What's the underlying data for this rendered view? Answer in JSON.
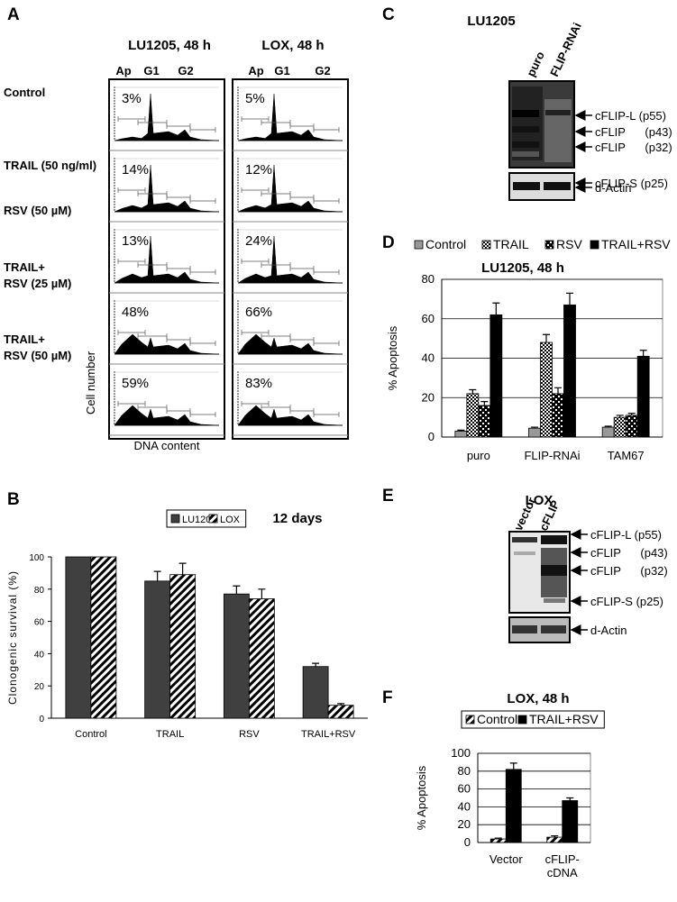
{
  "panel_a": {
    "panel": "A",
    "columns": [
      {
        "title": "LU1205,  48 h",
        "phases": [
          "Ap",
          "G1",
          "G2"
        ],
        "percents": [
          "3%",
          "14%",
          "13%",
          "48%",
          "59%"
        ]
      },
      {
        "title": "LOX, 48 h",
        "phases": [
          "Ap",
          "G1",
          "G2"
        ],
        "percents": [
          "5%",
          "12%",
          "24%",
          "66%",
          "83%"
        ]
      }
    ],
    "rows": [
      [
        "Control"
      ],
      [
        "TRAIL (50 ng/ml)"
      ],
      [
        "RSV (50 µM)"
      ],
      [
        "TRAIL+",
        "RSV (25 µM)"
      ],
      [
        "TRAIL+",
        "RSV (50 µM)"
      ]
    ],
    "y_label": "Cell number",
    "x_label": "DNA content"
  },
  "panel_c": {
    "panel": "C",
    "title": "LU1205",
    "lanes": [
      "puro",
      "FLIP-RNAi"
    ],
    "bands": [
      "cFLIP-L (p55)",
      "cFLIP      (p43)",
      "cFLIP      (p32)",
      "cFLIP-S (p25)"
    ],
    "loading": "d-Actin"
  },
  "panel_e": {
    "panel": "E",
    "title": "LOX",
    "lanes": [
      "vector",
      "cFLIP"
    ],
    "bands": [
      "cFLIP-L (p55)",
      "cFLIP      (p43)",
      "cFLIP      (p32)",
      "cFLIP-S (p25)"
    ],
    "loading": "d-Actin"
  },
  "chart_data": [
    {
      "panel": "B",
      "type": "bar",
      "title": "12 days",
      "y_label": "Clonogenic survival (%)",
      "categories": [
        "Control",
        "TRAIL",
        "RSV",
        "TRAIL+RSV"
      ],
      "series": [
        {
          "name": "LU1205",
          "color": "#404040",
          "pattern": "solid",
          "values": [
            100,
            85,
            77,
            32
          ],
          "errors": [
            0,
            6,
            5,
            2
          ]
        },
        {
          "name": "LOX",
          "color": "#000000",
          "pattern": "hatch",
          "values": [
            100,
            89,
            74,
            8
          ],
          "errors": [
            0,
            7,
            6,
            1
          ]
        }
      ],
      "ylim": [
        0,
        100
      ],
      "yticks": [
        0,
        20,
        40,
        60,
        80,
        100
      ],
      "grid": false,
      "legend": "top"
    },
    {
      "panel": "D",
      "type": "bar",
      "title": "LU1205, 48 h",
      "y_label": "% Apoptosis",
      "categories": [
        "puro",
        "FLIP-RNAi",
        "TAM67"
      ],
      "series": [
        {
          "name": "Control",
          "color": "#999999",
          "pattern": "solid",
          "values": [
            3,
            4.5,
            5
          ],
          "errors": [
            0.5,
            0.5,
            0.5
          ]
        },
        {
          "name": "TRAIL",
          "color": "#000000",
          "pattern": "check",
          "values": [
            22,
            48,
            10
          ],
          "errors": [
            2,
            4,
            1
          ]
        },
        {
          "name": "RSV",
          "color": "#000000",
          "pattern": "lattice",
          "values": [
            16,
            22,
            11
          ],
          "errors": [
            2,
            3,
            1
          ]
        },
        {
          "name": "TRAIL+RSV",
          "color": "#000000",
          "pattern": "solid",
          "values": [
            62,
            67,
            41
          ],
          "errors": [
            6,
            6,
            3
          ]
        }
      ],
      "ylim": [
        0,
        80
      ],
      "yticks": [
        0,
        20,
        40,
        60,
        80
      ],
      "grid": true,
      "legend": "top"
    },
    {
      "panel": "F",
      "type": "bar",
      "title": "LOX, 48 h",
      "y_label": "% Apoptosis",
      "categories": [
        "Vector",
        "cFLIP-cDNA"
      ],
      "series": [
        {
          "name": "Control",
          "color": "#000000",
          "pattern": "hatch",
          "values": [
            4,
            6
          ],
          "errors": [
            1,
            1.5
          ]
        },
        {
          "name": "TRAIL+RSV",
          "color": "#000000",
          "pattern": "solid",
          "values": [
            82,
            47
          ],
          "errors": [
            7,
            3
          ]
        }
      ],
      "ylim": [
        0,
        100
      ],
      "yticks": [
        0,
        20,
        40,
        60,
        80,
        100
      ],
      "grid": true,
      "legend": "top"
    }
  ]
}
